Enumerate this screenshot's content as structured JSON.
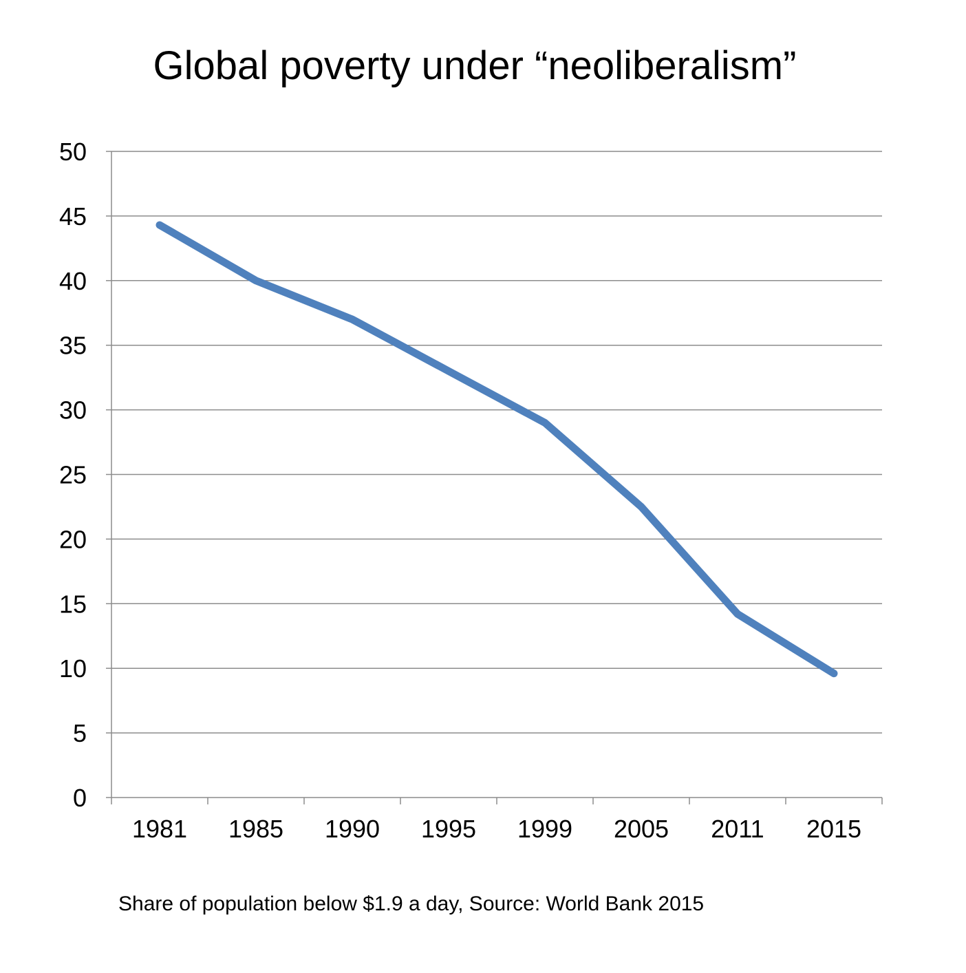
{
  "chart_data": {
    "type": "line",
    "title": "Global poverty under “neoliberalism”",
    "caption": "Share of population below $1.9 a day, Source: World Bank 2015",
    "xlabel": "",
    "ylabel": "",
    "categories": [
      "1981",
      "1985",
      "1990",
      "1995",
      "1999",
      "2005",
      "2011",
      "2015"
    ],
    "series": [
      {
        "name": "Share of population below $1.9 a day",
        "values": [
          44.3,
          40.0,
          37.0,
          33.0,
          29.0,
          22.5,
          14.2,
          9.6
        ],
        "color": "#4F81BD"
      }
    ],
    "ylim": [
      0,
      50
    ],
    "yticks": [
      0,
      5,
      10,
      15,
      20,
      25,
      30,
      35,
      40,
      45,
      50
    ],
    "grid": true,
    "legend": "none"
  }
}
